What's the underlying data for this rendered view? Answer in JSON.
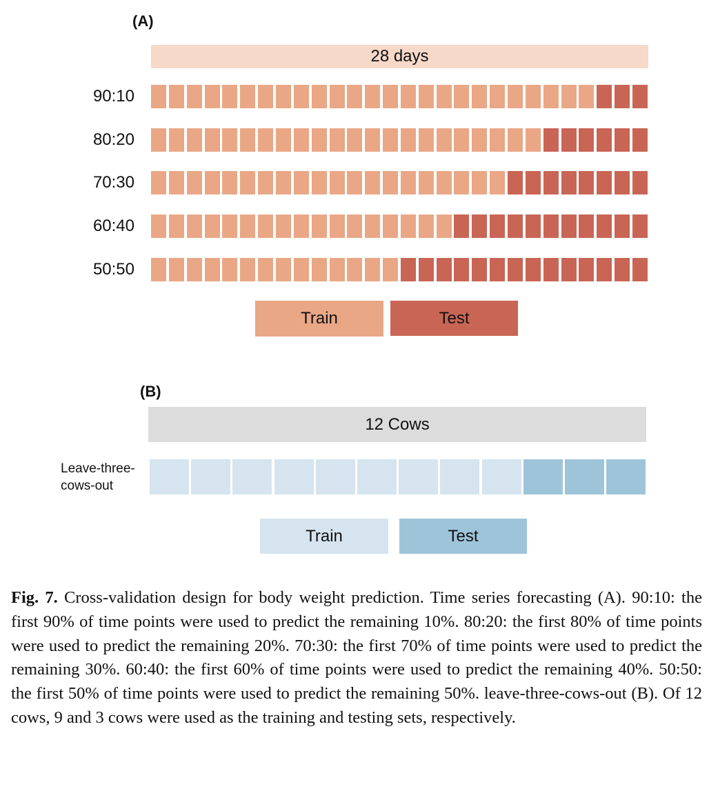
{
  "panel_a": {
    "label": "(A)",
    "header": "28 days",
    "total_days": 28,
    "rows": [
      {
        "label": "90:10",
        "train_fraction": 0.9
      },
      {
        "label": "80:20",
        "train_fraction": 0.8
      },
      {
        "label": "70:30",
        "train_fraction": 0.7
      },
      {
        "label": "60:40",
        "train_fraction": 0.6
      },
      {
        "label": "50:50",
        "train_fraction": 0.5
      }
    ],
    "legend": {
      "train": "Train",
      "test": "Test"
    },
    "colors": {
      "header": "#f6d9c8",
      "train": "#e9a786",
      "test": "#c96555"
    }
  },
  "panel_b": {
    "label": "(B)",
    "header": "12 Cows",
    "total_cows": 12,
    "test_cows": 3,
    "row_label_line1": "Leave-three-",
    "row_label_line2": "cows-out",
    "legend": {
      "train": "Train",
      "test": "Test"
    },
    "colors": {
      "header": "#dcdcdc",
      "train": "#d5e4ef",
      "test": "#9ec4da"
    }
  },
  "caption": {
    "fig": "Fig. 7.",
    "text": " Cross-validation design for body weight prediction. Time series forecasting (A). 90:10: the first 90% of time points were used to predict the remaining 10%. 80:20: the first 80% of time points were used to predict the remaining 20%. 70:30: the first 70% of time points were used to predict the remaining 30%. 60:40: the first 60% of time points were used to predict the remaining 40%. 50:50: the first 50% of time points were used to predict the remaining 50%. leave-three-cows-out (B). Of 12 cows, 9 and 3 cows were used as the training and testing sets, respectively."
  }
}
